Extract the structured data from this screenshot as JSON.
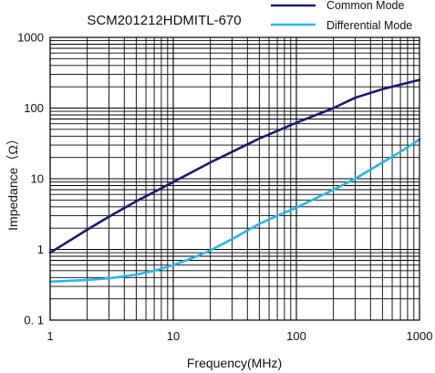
{
  "chart_data": {
    "type": "line",
    "title": "SCM201212HDMITL-670",
    "xlabel": "Frequency(MHz)",
    "ylabel": "Impedance（Ω）",
    "x_scale": "log",
    "y_scale": "log",
    "xlim": [
      1,
      1000
    ],
    "ylim": [
      0.1,
      1000
    ],
    "x_ticks": [
      1,
      10,
      100,
      1000
    ],
    "x_tick_labels": [
      "1",
      "10",
      "100",
      "1000"
    ],
    "y_ticks": [
      0.1,
      1,
      10,
      100,
      1000
    ],
    "y_tick_labels": [
      "0. 1",
      "1",
      "10",
      "100",
      "1000"
    ],
    "grid": true,
    "legend_position": "top-right",
    "series": [
      {
        "name": "Common Mode",
        "color": "#1a1a6e",
        "x": [
          1,
          2,
          3,
          5,
          7,
          10,
          20,
          30,
          50,
          100,
          200,
          300,
          500,
          700,
          1000
        ],
        "y": [
          0.9,
          1.9,
          2.9,
          4.8,
          6.5,
          9,
          17,
          24,
          37,
          62,
          100,
          140,
          185,
          215,
          250
        ]
      },
      {
        "name": "Differential Mode",
        "color": "#29b6e8",
        "x": [
          1,
          2,
          3,
          5,
          7,
          10,
          15,
          20,
          30,
          50,
          70,
          100,
          200,
          300,
          500,
          700,
          1000
        ],
        "y": [
          0.35,
          0.37,
          0.39,
          0.44,
          0.5,
          0.6,
          0.78,
          0.97,
          1.4,
          2.3,
          3.0,
          3.9,
          7.0,
          10,
          17,
          24,
          36
        ]
      }
    ]
  }
}
